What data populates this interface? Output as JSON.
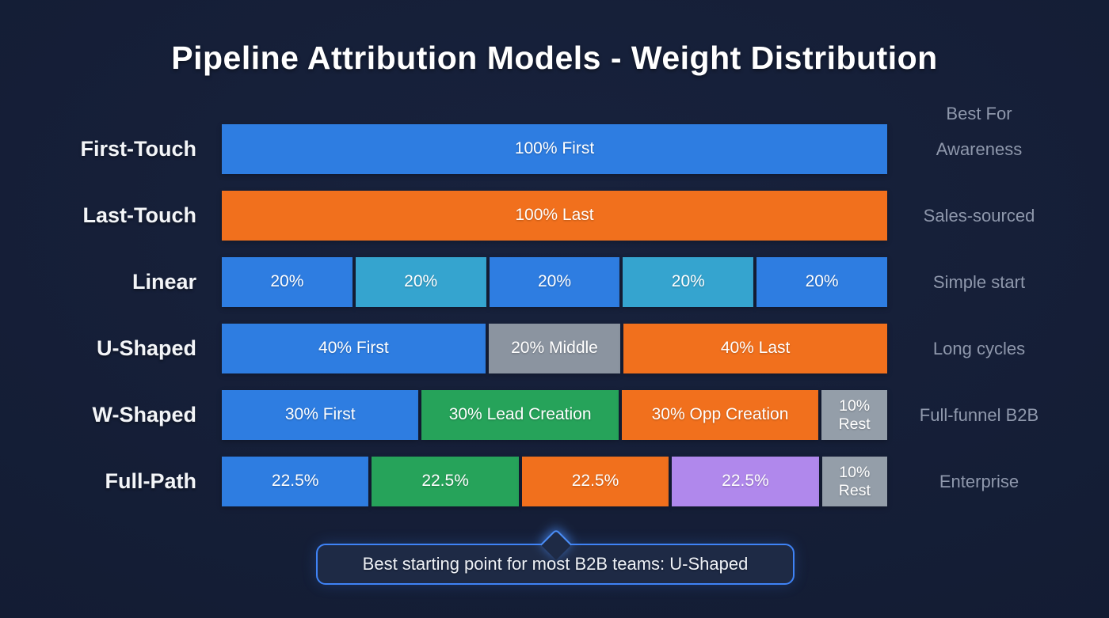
{
  "colors": {
    "background": "#141e36",
    "accent": "#3f83f6",
    "title_text": "#ffffff",
    "muted_text": "#8f98ac",
    "blue": "#2e7de1",
    "teal": "#35a4cf",
    "orange": "#f1701d",
    "green": "#26a35a",
    "purple": "#b088ec",
    "gray": "#8b94a0",
    "grayRest": "#949ea9"
  },
  "chart_data": {
    "type": "bar",
    "variant": "horizontal_stacked",
    "title": "Pipeline Attribution Models - Weight Distribution",
    "right_header": "Best For",
    "xlim": [
      0,
      100
    ],
    "grid": false,
    "legend": false,
    "categories": [
      "First-Touch",
      "Last-Touch",
      "Linear",
      "U-Shaped",
      "W-Shaped",
      "Full-Path"
    ],
    "rows": [
      {
        "model": "First-Touch",
        "best_for": "Awareness",
        "segments": [
          {
            "label": "100% First",
            "value": 100,
            "color": "blue"
          }
        ]
      },
      {
        "model": "Last-Touch",
        "best_for": "Sales-sourced",
        "segments": [
          {
            "label": "100% Last",
            "value": 100,
            "color": "orange"
          }
        ]
      },
      {
        "model": "Linear",
        "best_for": "Simple start",
        "segments": [
          {
            "label": "20%",
            "value": 20,
            "color": "blue"
          },
          {
            "label": "20%",
            "value": 20,
            "color": "teal"
          },
          {
            "label": "20%",
            "value": 20,
            "color": "blue"
          },
          {
            "label": "20%",
            "value": 20,
            "color": "teal"
          },
          {
            "label": "20%",
            "value": 20,
            "color": "blue"
          }
        ]
      },
      {
        "model": "U-Shaped",
        "best_for": "Long cycles",
        "segments": [
          {
            "label": "40% First",
            "value": 40,
            "color": "blue"
          },
          {
            "label": "20% Middle",
            "value": 20,
            "color": "gray"
          },
          {
            "label": "40% Last",
            "value": 40,
            "color": "orange"
          }
        ]
      },
      {
        "model": "W-Shaped",
        "best_for": "Full-funnel B2B",
        "segments": [
          {
            "label": "30% First",
            "value": 30,
            "color": "blue"
          },
          {
            "label": "30% Lead Creation",
            "value": 30,
            "color": "green"
          },
          {
            "label": "30% Opp Creation",
            "value": 30,
            "color": "orange"
          },
          {
            "label": "10%\nRest",
            "value": 10,
            "color": "grayRest"
          }
        ]
      },
      {
        "model": "Full-Path",
        "best_for": "Enterprise",
        "segments": [
          {
            "label": "22.5%",
            "value": 22.5,
            "color": "blue"
          },
          {
            "label": "22.5%",
            "value": 22.5,
            "color": "green"
          },
          {
            "label": "22.5%",
            "value": 22.5,
            "color": "orange"
          },
          {
            "label": "22.5%",
            "value": 22.5,
            "color": "purple"
          },
          {
            "label": "10%\nRest",
            "value": 10,
            "color": "grayRest"
          }
        ]
      }
    ],
    "annotation": "Best starting point for most B2B teams: U-Shaped"
  }
}
